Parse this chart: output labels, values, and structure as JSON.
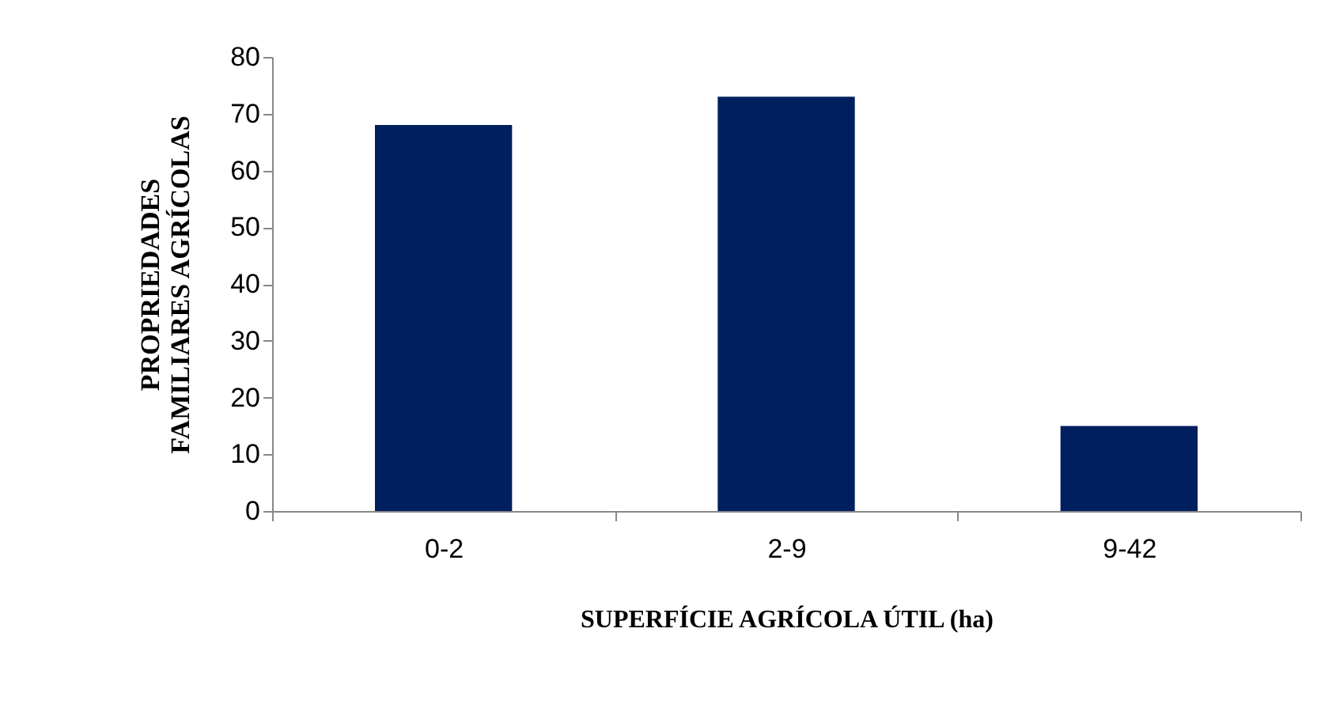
{
  "chart_data": {
    "type": "bar",
    "categories": [
      "0-2",
      "2-9",
      "9-42"
    ],
    "values": [
      68,
      73,
      15
    ],
    "color": "#001f5f",
    "xlabel": "SUPERFÍCIE AGRÍCOLA ÚTIL (ha)",
    "ylabel": "PROPRIEDADES\nFAMILIARES AGRÍCOLAS",
    "ylim": [
      0,
      80
    ],
    "yticks": [
      0,
      10,
      20,
      30,
      40,
      50,
      60,
      70,
      80
    ],
    "grid": false
  }
}
